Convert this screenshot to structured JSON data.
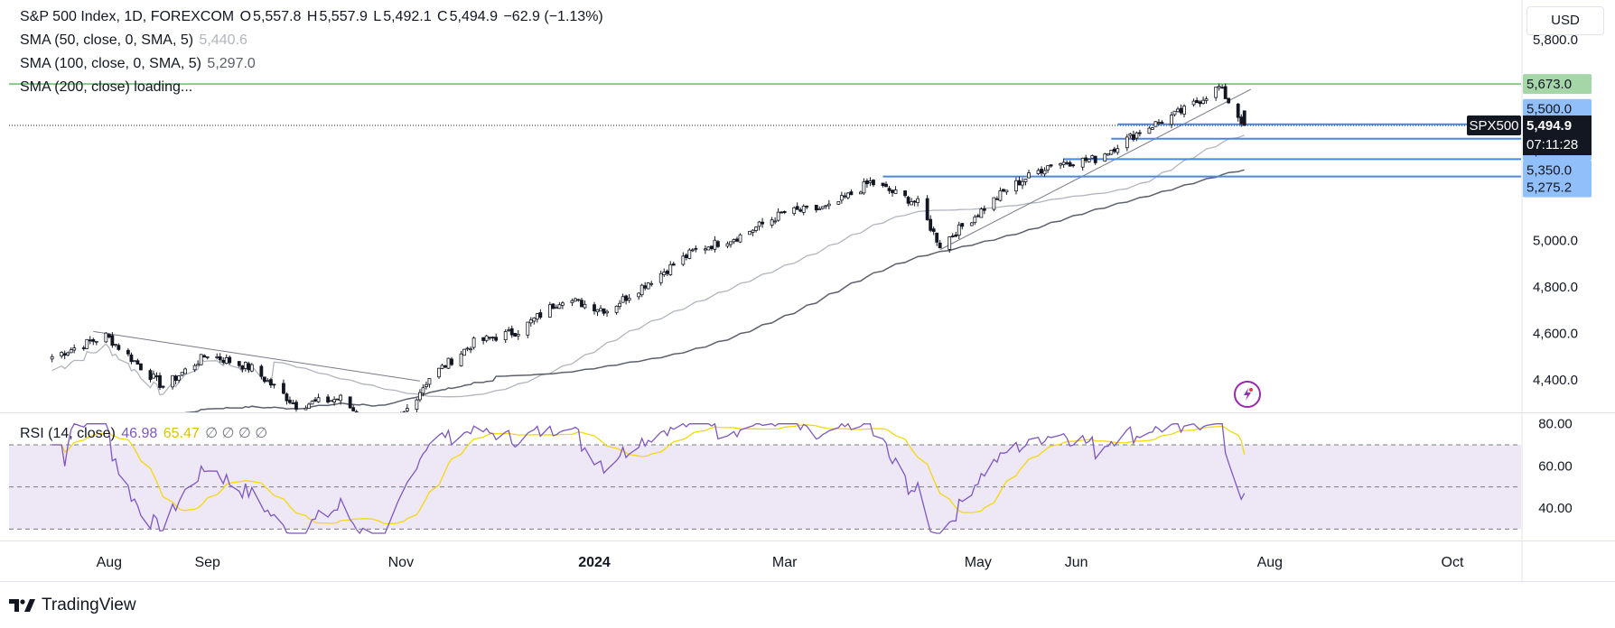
{
  "legend": {
    "main": {
      "symbol": "S&P 500 Index, 1D, FOREXCOM",
      "o_label": "O",
      "o": "5,557.8",
      "h_label": "H",
      "h": "5,557.9",
      "l_label": "L",
      "l": "5,492.1",
      "c_label": "C",
      "c": "5,494.9",
      "chg": "−62.9 (−1.13%)"
    },
    "sma50": {
      "name": "SMA (50, close, 0, SMA, 5)",
      "value": "5,440.6"
    },
    "sma100": {
      "name": "SMA (100, close, 0, SMA, 5)",
      "value": "5,297.0"
    },
    "sma200": {
      "name": "SMA (200, close) loading..."
    },
    "rsi": {
      "name": "RSI (14, close)",
      "value": "46.98",
      "ma": "65.47",
      "extras": "∅ ∅ ∅ ∅"
    }
  },
  "currency": "USD",
  "brand": "TradingView",
  "icons": {
    "logo": "tradingview-logo-icon",
    "flash": "flash-icon"
  },
  "colors": {
    "up": "#131722",
    "down": "#131722",
    "sma50": "#b2b5be",
    "sma100": "#5d606b",
    "level": "#4a86e8",
    "resistance": "#86c98a",
    "rsi": "#7e57c2",
    "rsi_ma": "#f5d90a",
    "rsi_band": "#ede7f6",
    "price_badge": "#131722"
  },
  "price_labels": {
    "resistance": "5,673.0",
    "levels": [
      "5,500.0",
      "5,437.8",
      "5,350.0",
      "5,275.2"
    ],
    "current": "5,494.9",
    "countdown": "07:11:28",
    "ticker": "SPX500"
  },
  "y_axis_ticks": [
    "5,000.0",
    "4,800.0",
    "4,600.0",
    "4,400.0"
  ],
  "y_axis_partial_top": "5,800.0",
  "rsi_axis_ticks": [
    "80.00",
    "60.00",
    "40.00"
  ],
  "x_axis_ticks": [
    "Aug",
    "Sep",
    "Nov",
    "2024",
    "Mar",
    "May",
    "Jun",
    "Aug",
    "Oct"
  ],
  "chart_data": {
    "type": "candlestick",
    "symbol": "S&P 500 Index",
    "interval": "1D",
    "price_range": [
      4260,
      5860
    ],
    "x": [
      "2023-07-14",
      "2023-07-31",
      "2023-08-18",
      "2023-09-01",
      "2023-09-15",
      "2023-09-29",
      "2023-10-13",
      "2023-10-27",
      "2023-11-10",
      "2023-11-24",
      "2023-12-08",
      "2023-12-22",
      "2024-01-05",
      "2024-01-19",
      "2024-02-02",
      "2024-02-16",
      "2024-03-01",
      "2024-03-15",
      "2024-03-28",
      "2024-04-12",
      "2024-04-19",
      "2024-04-26",
      "2024-05-10",
      "2024-05-24",
      "2024-06-07",
      "2024-06-21",
      "2024-07-05",
      "2024-07-16",
      "2024-07-24"
    ],
    "close": [
      4500,
      4590,
      4370,
      4510,
      4450,
      4290,
      4320,
      4140,
      4410,
      4560,
      4610,
      4750,
      4700,
      4830,
      4960,
      5020,
      5120,
      5140,
      5250,
      5160,
      4980,
      5060,
      5220,
      5330,
      5350,
      5470,
      5560,
      5660,
      5495
    ],
    "current": 5494.9,
    "sma50_last": 5440.6,
    "sma100_last": 5297.0,
    "horizontal_levels": [
      5673.0,
      5500.0,
      5437.8,
      5350.0,
      5275.2
    ],
    "rsi_range": [
      25,
      85
    ],
    "rsi_last": 46.98,
    "rsi_ma_last": 65.47,
    "rsi_bands": [
      70,
      50,
      30
    ]
  }
}
